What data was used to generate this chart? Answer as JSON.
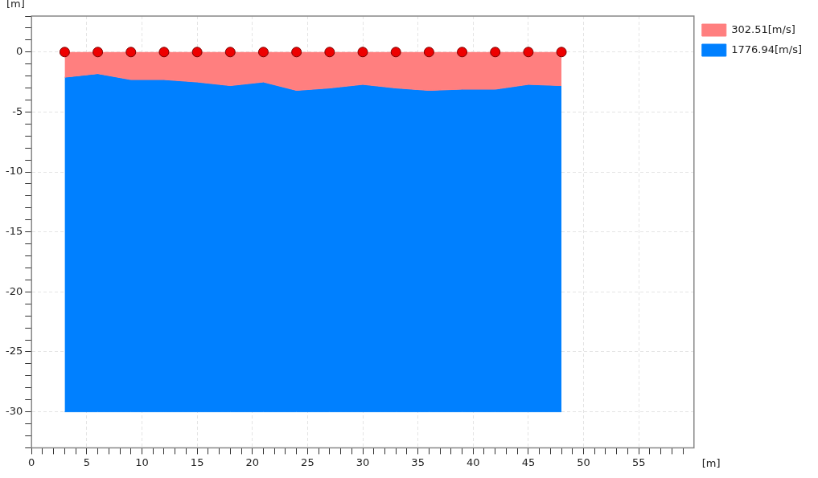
{
  "chart_data": {
    "type": "area",
    "xlabel": "[m]",
    "ylabel": "[m]",
    "x": [
      3,
      6,
      9,
      12,
      15,
      18,
      21,
      24,
      27,
      30,
      33,
      36,
      39,
      42,
      45,
      48
    ],
    "series": [
      {
        "name": "302.51[m/s]",
        "color": "#ff7f7f",
        "values": [
          -2.1,
          -1.8,
          -2.3,
          -2.3,
          -2.5,
          -2.8,
          -2.5,
          -3.2,
          -3.0,
          -2.7,
          -3.0,
          -3.2,
          -3.1,
          -3.1,
          -2.7,
          -2.8
        ]
      },
      {
        "name": "1776.94[m/s]",
        "color": "#0080ff",
        "values": [
          -27.9,
          -28.2,
          -27.7,
          -27.7,
          -27.5,
          -27.2,
          -27.5,
          -26.8,
          -27.0,
          -27.3,
          -27.0,
          -26.8,
          -26.9,
          -26.9,
          -27.3,
          -27.2
        ]
      },
      {
        "color": "#ee0000",
        "type": "scatter",
        "marker": "circle",
        "values": [
          0,
          0,
          0,
          0,
          0,
          0,
          0,
          0,
          0,
          0,
          0,
          0,
          0,
          0,
          0,
          0
        ]
      }
    ],
    "stacked": true,
    "xlim": [
      0,
      60
    ],
    "ylim": [
      -33,
      3
    ],
    "xticks": [
      0,
      {
        "value": 1,
        "label": null
      },
      {
        "value": 2,
        "label": null
      },
      {
        "value": 3,
        "label": null
      },
      {
        "value": 4,
        "label": null
      },
      5,
      {
        "value": 6,
        "label": null
      },
      {
        "value": 7,
        "label": null
      },
      {
        "value": 8,
        "label": null
      },
      {
        "value": 9,
        "label": null
      },
      10,
      {
        "value": 11,
        "label": null
      },
      {
        "value": 12,
        "label": null
      },
      {
        "value": 13,
        "label": null
      },
      {
        "value": 14,
        "label": null
      },
      15,
      {
        "value": 16,
        "label": null
      },
      {
        "value": 17,
        "label": null
      },
      {
        "value": 18,
        "label": null
      },
      {
        "value": 19,
        "label": null
      },
      20,
      {
        "value": 21,
        "label": null
      },
      {
        "value": 22,
        "label": null
      },
      {
        "value": 23,
        "label": null
      },
      {
        "value": 24,
        "label": null
      },
      25,
      {
        "value": 26,
        "label": null
      },
      {
        "value": 27,
        "label": null
      },
      {
        "value": 28,
        "label": null
      },
      {
        "value": 29,
        "label": null
      },
      30,
      {
        "value": 31,
        "label": null
      },
      {
        "value": 32,
        "label": null
      },
      {
        "value": 33,
        "label": null
      },
      {
        "value": 34,
        "label": null
      },
      35,
      {
        "value": 36,
        "label": null
      },
      {
        "value": 37,
        "label": null
      },
      {
        "value": 38,
        "label": null
      },
      {
        "value": 39,
        "label": null
      },
      40,
      {
        "value": 41,
        "label": null
      },
      {
        "value": 42,
        "label": null
      },
      {
        "value": 43,
        "label": null
      },
      {
        "value": 44,
        "label": null
      },
      45,
      {
        "value": 46,
        "label": null
      },
      {
        "value": 47,
        "label": null
      },
      {
        "value": 48,
        "label": null
      },
      {
        "value": 49,
        "label": null
      },
      50,
      {
        "value": 51,
        "label": null
      },
      {
        "value": 52,
        "label": null
      },
      {
        "value": 53,
        "label": null
      },
      {
        "value": 54,
        "label": null
      },
      55,
      {
        "value": 56,
        "label": null
      },
      {
        "value": 57,
        "label": null
      },
      {
        "value": 58,
        "label": null
      },
      {
        "value": 59,
        "label": null
      }
    ],
    "yticks": [
      {
        "value": -33,
        "label": null
      },
      {
        "value": -32,
        "label": null
      },
      {
        "value": -31,
        "label": null
      },
      -30,
      {
        "value": -29,
        "label": null
      },
      {
        "value": -28,
        "label": null
      },
      {
        "value": -27,
        "label": null
      },
      {
        "value": -26,
        "label": null
      },
      -25,
      {
        "value": -24,
        "label": null
      },
      {
        "value": -23,
        "label": null
      },
      {
        "value": -22,
        "label": null
      },
      {
        "value": -21,
        "label": null
      },
      -20,
      {
        "value": -19,
        "label": null
      },
      {
        "value": -18,
        "label": null
      },
      {
        "value": -17,
        "label": null
      },
      {
        "value": -16,
        "label": null
      },
      -15,
      {
        "value": -14,
        "label": null
      },
      {
        "value": -13,
        "label": null
      },
      {
        "value": -12,
        "label": null
      },
      {
        "value": -11,
        "label": null
      },
      -10,
      {
        "value": -9,
        "label": null
      },
      {
        "value": -8,
        "label": null
      },
      {
        "value": -7,
        "label": null
      },
      {
        "value": -6,
        "label": null
      },
      -5,
      {
        "value": -4,
        "label": null
      },
      {
        "value": -3,
        "label": null
      },
      {
        "value": -2,
        "label": null
      },
      {
        "value": -1,
        "label": null
      },
      0,
      {
        "value": 1,
        "label": null
      },
      {
        "value": 2,
        "label": null
      },
      {
        "value": 3,
        "label": null
      }
    ],
    "grid": true,
    "legend": "top right"
  }
}
